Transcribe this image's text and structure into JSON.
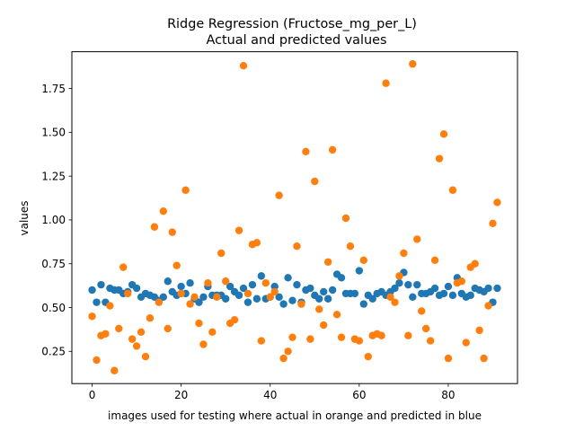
{
  "chart_data": {
    "type": "scatter",
    "title": "Ridge Regression (Fructose_mg_per_L)",
    "subtitle": "Actual and predicted values",
    "xlabel": "images used for testing where actual in orange and predicted in blue",
    "ylabel": "values",
    "xlim": [
      -4.55,
      95.55
    ],
    "ylim": [
      0.066,
      1.96
    ],
    "xticks": [
      0,
      20,
      40,
      60,
      80
    ],
    "yticks": [
      0.25,
      0.5,
      0.75,
      1.0,
      1.25,
      1.5,
      1.75
    ],
    "ytick_labels": [
      "0.25",
      "0.50",
      "0.75",
      "1.00",
      "1.25",
      "1.50",
      "1.75"
    ],
    "grid": false,
    "series": [
      {
        "role": "predicted",
        "color": "#1f77b4",
        "x": [
          0,
          1,
          2,
          3,
          4,
          5,
          6,
          7,
          8,
          9,
          10,
          11,
          12,
          13,
          14,
          15,
          16,
          17,
          18,
          19,
          20,
          21,
          22,
          23,
          24,
          25,
          26,
          27,
          28,
          29,
          30,
          31,
          32,
          33,
          34,
          35,
          36,
          37,
          38,
          39,
          40,
          41,
          42,
          43,
          44,
          45,
          46,
          47,
          48,
          49,
          50,
          51,
          52,
          53,
          54,
          55,
          56,
          57,
          58,
          59,
          60,
          61,
          62,
          63,
          64,
          65,
          66,
          67,
          68,
          69,
          70,
          71,
          72,
          73,
          74,
          75,
          76,
          77,
          78,
          79,
          80,
          81,
          82,
          83,
          84,
          85,
          86,
          87,
          88,
          89,
          90,
          91
        ],
        "y": [
          0.6,
          0.53,
          0.63,
          0.53,
          0.61,
          0.6,
          0.6,
          0.58,
          0.59,
          0.63,
          0.61,
          0.56,
          0.58,
          0.57,
          0.56,
          0.54,
          0.56,
          0.65,
          0.59,
          0.57,
          0.62,
          0.58,
          0.64,
          0.55,
          0.53,
          0.56,
          0.62,
          0.57,
          0.57,
          0.57,
          0.55,
          0.62,
          0.59,
          0.57,
          0.61,
          0.53,
          0.63,
          0.55,
          0.68,
          0.55,
          0.56,
          0.62,
          0.56,
          0.52,
          0.67,
          0.54,
          0.63,
          0.53,
          0.6,
          0.61,
          0.57,
          0.55,
          0.59,
          0.55,
          0.6,
          0.69,
          0.67,
          0.58,
          0.58,
          0.58,
          0.71,
          0.52,
          0.57,
          0.55,
          0.58,
          0.59,
          0.57,
          0.59,
          0.61,
          0.64,
          0.7,
          0.63,
          0.56,
          0.63,
          0.58,
          0.58,
          0.59,
          0.61,
          0.57,
          0.58,
          0.62,
          0.57,
          0.67,
          0.58,
          0.56,
          0.57,
          0.61,
          0.6,
          0.59,
          0.61,
          0.53,
          0.61
        ]
      },
      {
        "role": "actual",
        "color": "#ff7f0e",
        "x": [
          0,
          1,
          2,
          3,
          4,
          5,
          6,
          7,
          8,
          9,
          10,
          11,
          12,
          13,
          14,
          15,
          16,
          17,
          18,
          19,
          20,
          21,
          22,
          23,
          24,
          25,
          26,
          27,
          28,
          29,
          30,
          31,
          32,
          33,
          34,
          35,
          36,
          37,
          38,
          39,
          40,
          41,
          42,
          43,
          44,
          45,
          46,
          47,
          48,
          49,
          50,
          51,
          52,
          53,
          54,
          55,
          56,
          57,
          58,
          59,
          60,
          61,
          62,
          63,
          64,
          65,
          66,
          67,
          68,
          69,
          70,
          71,
          72,
          73,
          74,
          75,
          76,
          77,
          78,
          79,
          80,
          81,
          82,
          83,
          84,
          85,
          86,
          87,
          88,
          89,
          90,
          91
        ],
        "y": [
          0.45,
          0.2,
          0.34,
          0.35,
          0.51,
          0.14,
          0.38,
          0.73,
          0.58,
          0.32,
          0.28,
          0.36,
          0.22,
          0.44,
          0.96,
          0.53,
          1.05,
          0.38,
          0.93,
          0.74,
          0.58,
          1.17,
          0.52,
          0.56,
          0.41,
          0.29,
          0.64,
          0.36,
          0.56,
          0.81,
          0.65,
          0.41,
          0.43,
          0.94,
          1.88,
          0.58,
          0.86,
          0.87,
          0.31,
          0.64,
          0.56,
          0.59,
          1.14,
          0.21,
          0.25,
          0.33,
          0.85,
          0.52,
          1.39,
          0.32,
          1.22,
          0.49,
          0.4,
          0.76,
          1.4,
          0.46,
          0.33,
          1.01,
          0.85,
          0.32,
          0.31,
          0.77,
          0.22,
          0.34,
          0.35,
          0.34,
          1.78,
          0.56,
          0.53,
          0.68,
          0.81,
          0.34,
          1.89,
          0.89,
          0.48,
          0.38,
          0.31,
          0.77,
          1.35,
          1.49,
          0.21,
          1.17,
          0.64,
          0.65,
          0.3,
          0.73,
          0.75,
          0.37,
          0.21,
          0.51,
          0.98,
          1.1
        ]
      }
    ]
  }
}
